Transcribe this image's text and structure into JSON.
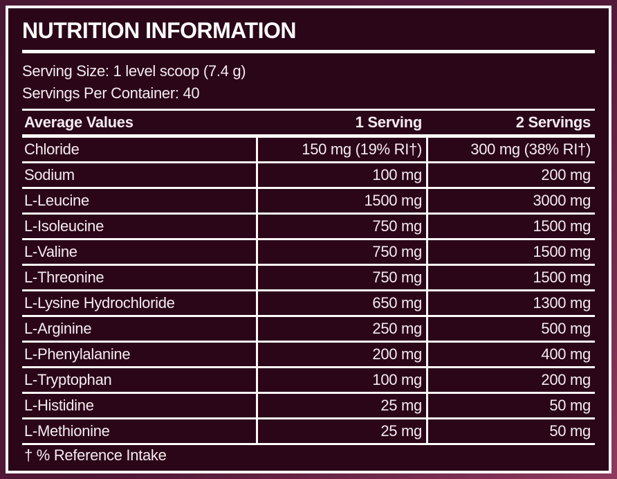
{
  "colors": {
    "bg_outer_dark": "#4a1733",
    "bg_outer_light": "#8e3a5e",
    "bg_inner": "#2b0618",
    "rule": "#fdfbfc",
    "text": "#f4ecf1"
  },
  "title": "NUTRITION INFORMATION",
  "serving_size": "Serving Size: 1 level scoop (7.4 g)",
  "servings_per_container": "Servings Per Container: 40",
  "table": {
    "headers": [
      "Average Values",
      "1 Serving",
      "2 Servings"
    ],
    "rows": [
      {
        "name": "Chloride",
        "serving1": "150 mg (19% RI†)",
        "serving2": "300 mg (38% RI†)"
      },
      {
        "name": "Sodium",
        "serving1": "100 mg",
        "serving2": "200 mg"
      },
      {
        "name": "L-Leucine",
        "serving1": "1500 mg",
        "serving2": "3000 mg"
      },
      {
        "name": "L-Isoleucine",
        "serving1": "750 mg",
        "serving2": "1500 mg"
      },
      {
        "name": "L-Valine",
        "serving1": "750 mg",
        "serving2": "1500 mg"
      },
      {
        "name": "L-Threonine",
        "serving1": "750 mg",
        "serving2": "1500 mg"
      },
      {
        "name": "L-Lysine Hydrochloride",
        "serving1": "650 mg",
        "serving2": "1300 mg"
      },
      {
        "name": "L-Arginine",
        "serving1": "250 mg",
        "serving2": "500 mg"
      },
      {
        "name": "L-Phenylalanine",
        "serving1": "200 mg",
        "serving2": "400 mg"
      },
      {
        "name": "L-Tryptophan",
        "serving1": "100 mg",
        "serving2": "200 mg"
      },
      {
        "name": "L-Histidine",
        "serving1": "25 mg",
        "serving2": "50 mg"
      },
      {
        "name": "L-Methionine",
        "serving1": "25 mg",
        "serving2": "50 mg"
      }
    ]
  },
  "footnote": "† % Reference Intake"
}
